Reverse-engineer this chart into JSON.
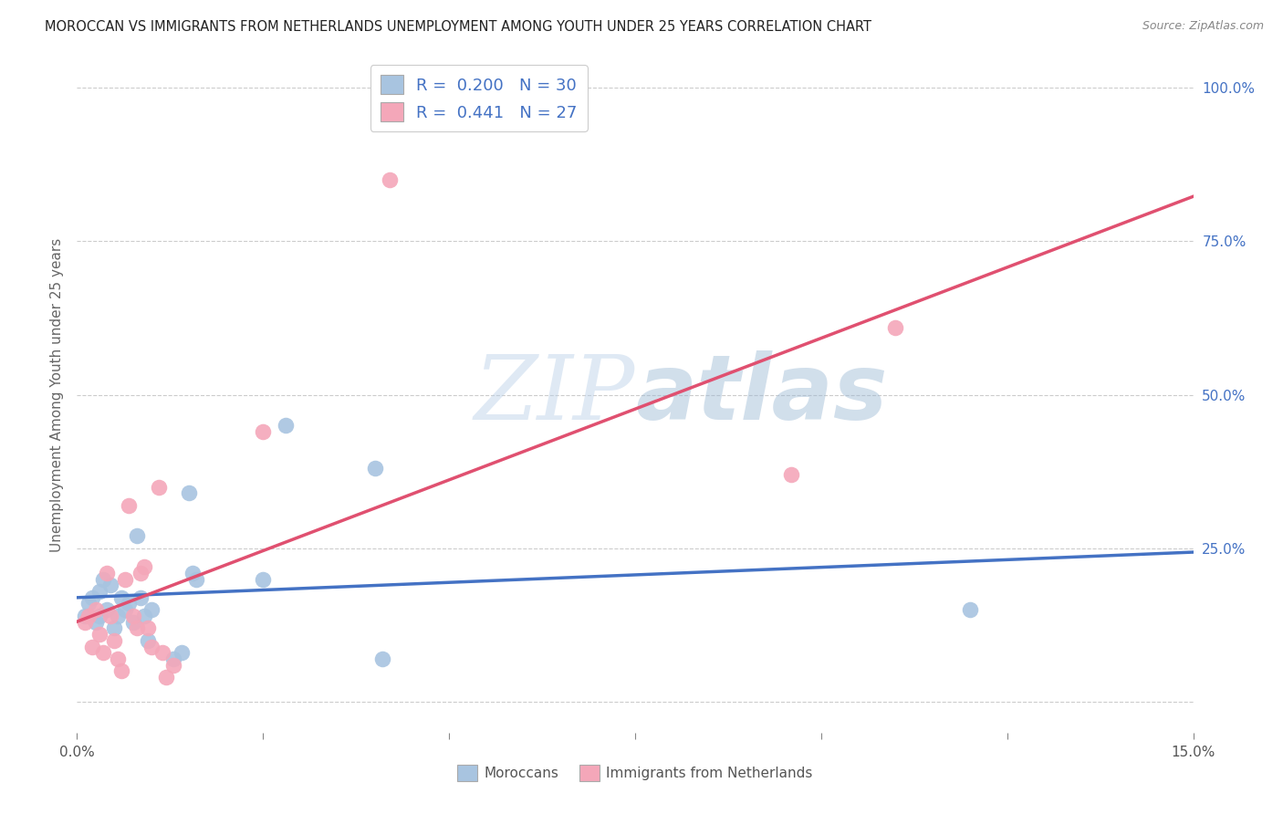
{
  "title": "MOROCCAN VS IMMIGRANTS FROM NETHERLANDS UNEMPLOYMENT AMONG YOUTH UNDER 25 YEARS CORRELATION CHART",
  "source": "Source: ZipAtlas.com",
  "ylabel": "Unemployment Among Youth under 25 years",
  "ytick_labels": [
    "",
    "25.0%",
    "50.0%",
    "75.0%",
    "100.0%"
  ],
  "ytick_vals": [
    0,
    25,
    50,
    75,
    100
  ],
  "xtick_vals": [
    0,
    2.5,
    5.0,
    7.5,
    10.0,
    12.5,
    15.0
  ],
  "xtick_labels": [
    "0.0%",
    "",
    "",
    "",
    "",
    "",
    "15.0%"
  ],
  "xmin": 0.0,
  "xmax": 15.0,
  "ymin": -5,
  "ymax": 105,
  "legend1_R": "0.200",
  "legend1_N": "30",
  "legend2_R": "0.441",
  "legend2_N": "27",
  "moroccans_color": "#a8c4e0",
  "netherlands_color": "#f4a7b9",
  "moroccans_line_color": "#4472c4",
  "netherlands_line_color": "#e05070",
  "moroccans_x": [
    0.1,
    0.15,
    0.2,
    0.25,
    0.3,
    0.3,
    0.35,
    0.4,
    0.45,
    0.5,
    0.55,
    0.6,
    0.65,
    0.7,
    0.75,
    0.8,
    0.85,
    0.9,
    0.95,
    1.0,
    1.3,
    1.4,
    1.5,
    1.55,
    1.6,
    2.5,
    2.8,
    4.0,
    4.1,
    12.0
  ],
  "moroccans_y": [
    14,
    16,
    17,
    13,
    14,
    18,
    20,
    15,
    19,
    12,
    14,
    17,
    15,
    16,
    13,
    27,
    17,
    14,
    10,
    15,
    7,
    8,
    34,
    21,
    20,
    20,
    45,
    38,
    7,
    15
  ],
  "netherlands_x": [
    0.1,
    0.15,
    0.2,
    0.25,
    0.3,
    0.35,
    0.4,
    0.45,
    0.5,
    0.55,
    0.6,
    0.65,
    0.7,
    0.75,
    0.8,
    0.85,
    0.9,
    0.95,
    1.0,
    1.1,
    1.15,
    1.2,
    1.3,
    2.5,
    4.2,
    9.6,
    11.0
  ],
  "netherlands_y": [
    13,
    14,
    9,
    15,
    11,
    8,
    21,
    14,
    10,
    7,
    5,
    20,
    32,
    14,
    12,
    21,
    22,
    12,
    9,
    35,
    8,
    4,
    6,
    44,
    85,
    37,
    61
  ],
  "watermark_zip": "ZIP",
  "watermark_atlas": "atlas",
  "grid_color": "#cccccc",
  "background_color": "#ffffff",
  "title_fontsize": 10.5,
  "source_fontsize": 9,
  "axis_tick_color": "#4472c4",
  "axis_label_color": "#666666"
}
